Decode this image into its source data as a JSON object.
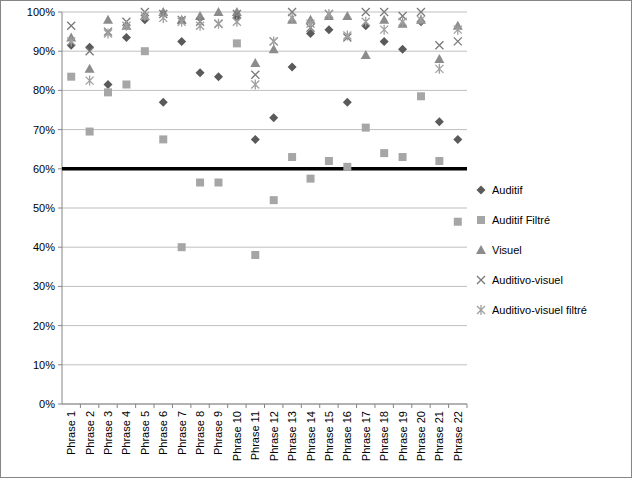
{
  "chart_data": {
    "type": "scatter",
    "categories": [
      "Phrase 1",
      "Phrase 2",
      "Phrase 3",
      "Phrase 4",
      "Phrase 5",
      "Phrase 6",
      "Phrase 7",
      "Phrase 8",
      "Phrase 9",
      "Phrase 10",
      "Phrase 11",
      "Phrase 12",
      "Phrase 13",
      "Phrase 14",
      "Phrase 15",
      "Phrase 16",
      "Phrase 17",
      "Phrase 18",
      "Phrase 19",
      "Phrase 20",
      "Phrase 21",
      "Phrase 22"
    ],
    "series": [
      {
        "name": "Auditif",
        "color": "#5a5a5a",
        "marker": "diamond",
        "values": [
          91.5,
          91,
          81.5,
          93.5,
          98,
          77,
          92.5,
          84.5,
          83.5,
          98.5,
          67.5,
          73,
          86,
          94.5,
          95.5,
          77,
          96.5,
          92.5,
          90.5,
          97.5,
          72,
          67.5
        ]
      },
      {
        "name": "Auditif Filtré",
        "color": "#a6a6a6",
        "marker": "square",
        "values": [
          83.5,
          69.5,
          79.5,
          81.5,
          90,
          67.5,
          40,
          56.5,
          56.5,
          92,
          38,
          52,
          63,
          57.5,
          62,
          60.5,
          70.5,
          64,
          63,
          78.5,
          62,
          46.5
        ]
      },
      {
        "name": "Visuel",
        "color": "#8c8c8c",
        "marker": "triangle",
        "values": [
          93.5,
          85.5,
          98,
          96.5,
          99,
          100,
          98,
          99,
          100,
          100,
          87,
          90.5,
          98,
          98,
          99,
          99,
          89,
          98,
          97,
          98,
          88,
          96.5
        ]
      },
      {
        "name": "Auditivo-visuel",
        "color": "#7a7a7a",
        "marker": "x",
        "values": [
          96.5,
          90,
          95,
          97.5,
          100,
          99.5,
          98,
          97.5,
          97,
          99.5,
          84,
          92.5,
          100,
          96,
          99.5,
          93.5,
          100,
          100,
          99,
          100,
          91.5,
          92.5
        ]
      },
      {
        "name": "Auditivo-visuel filtré",
        "color": "#a0a0a0",
        "marker": "asterisk",
        "values": [
          92.5,
          82.5,
          94.5,
          96.5,
          99,
          98.5,
          97.5,
          96.5,
          97,
          97.5,
          81.5,
          92.5,
          98.5,
          97,
          99.5,
          94,
          97.5,
          95.5,
          97.5,
          98,
          85.5,
          95.5
        ]
      }
    ],
    "ylim": [
      0,
      100
    ],
    "yticks": [
      {
        "value": 0,
        "label": "0%"
      },
      {
        "value": 10,
        "label": "10%"
      },
      {
        "value": 20,
        "label": "20%"
      },
      {
        "value": 30,
        "label": "30%"
      },
      {
        "value": 40,
        "label": "40%"
      },
      {
        "value": 50,
        "label": "50%"
      },
      {
        "value": 60,
        "label": "60%"
      },
      {
        "value": 70,
        "label": "70%"
      },
      {
        "value": 80,
        "label": "80%"
      },
      {
        "value": 90,
        "label": "90%"
      },
      {
        "value": 100,
        "label": "100%"
      }
    ],
    "reference_line": 60,
    "grid": true,
    "legend": "right"
  }
}
